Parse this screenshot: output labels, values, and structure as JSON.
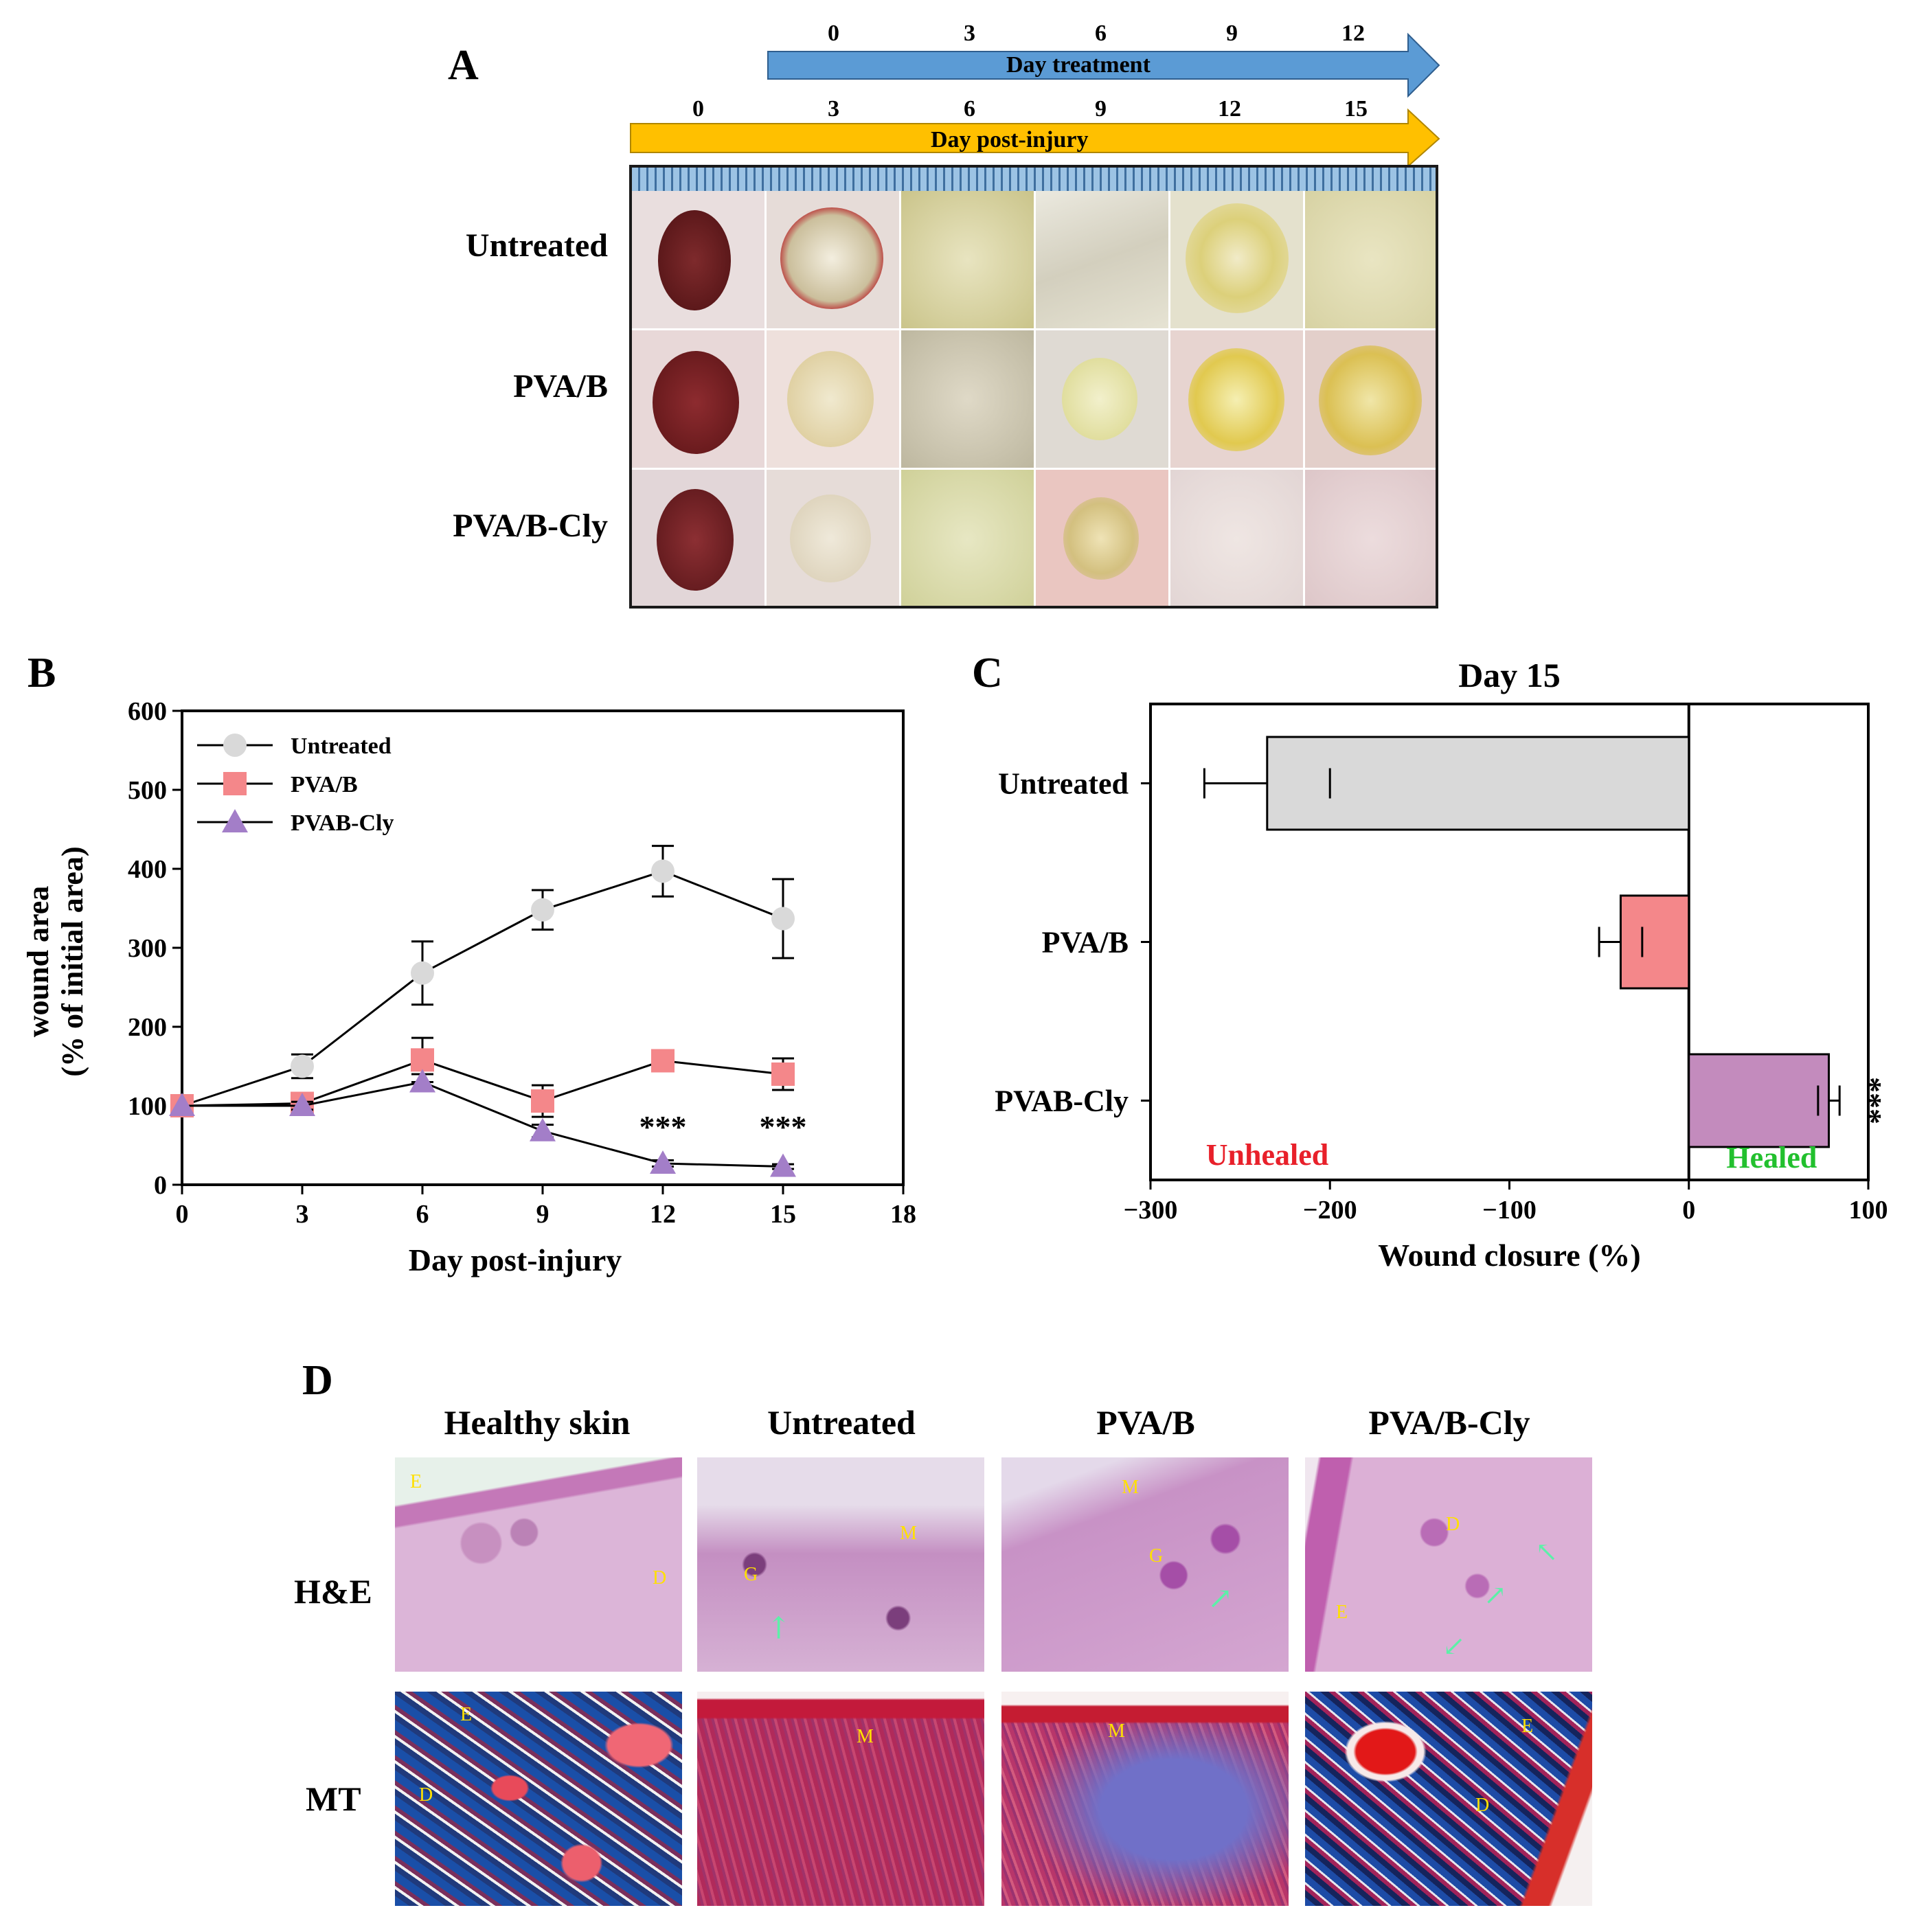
{
  "panelA": {
    "letter": "A",
    "treatment_arrow_label": "Day treatment",
    "treatment_days": [
      "0",
      "3",
      "6",
      "9",
      "12"
    ],
    "injury_arrow_label": "Day post-injury",
    "injury_days": [
      "0",
      "3",
      "6",
      "9",
      "12",
      "15"
    ],
    "rows": [
      "Untreated",
      "PVA/B",
      "PVA/B-Cly"
    ],
    "colors": {
      "treatment_arrow": "#5b9bd5",
      "injury_arrow": "#ffc000"
    }
  },
  "panelB": {
    "letter": "B"
  },
  "panelC": {
    "letter": "C"
  },
  "panelD": {
    "letter": "D",
    "columns": [
      "Healthy skin",
      "Untreated",
      "PVA/B",
      "PVA/B-Cly"
    ],
    "rows": [
      "H&E",
      "MT"
    ],
    "labels": {
      "he_healthy": [
        "E",
        "D"
      ],
      "he_untreated": [
        "G",
        "M"
      ],
      "he_pvab": [
        "M",
        "G"
      ],
      "he_pvabcly": [
        "D",
        "E"
      ],
      "mt_healthy": [
        "E",
        "D"
      ],
      "mt_untreated": [
        "M"
      ],
      "mt_pvab": [
        "M"
      ],
      "mt_pvabcly": [
        "E",
        "D"
      ]
    }
  },
  "chart_data": [
    {
      "type": "line",
      "xlabel": "Day post-injury",
      "ylabel": "wound area (% of initial area)",
      "ylabel_lines": [
        "wound area",
        "(% of initial area)"
      ],
      "xlim": [
        0,
        18
      ],
      "ylim": [
        0,
        600
      ],
      "xticks": [
        0,
        3,
        6,
        9,
        12,
        15,
        18
      ],
      "yticks": [
        0,
        100,
        200,
        300,
        400,
        500,
        600
      ],
      "legend_position": "top-left",
      "series": [
        {
          "name": "Untreated",
          "marker": "circle",
          "color": "#d9d9d9",
          "x": [
            0,
            3,
            6,
            9,
            12,
            15
          ],
          "y": [
            100,
            150,
            268,
            348,
            397,
            337
          ],
          "err": [
            0,
            15,
            40,
            25,
            32,
            50
          ]
        },
        {
          "name": "PVA/B",
          "marker": "square",
          "color": "#f4878a",
          "x": [
            0,
            3,
            6,
            9,
            12,
            15
          ],
          "y": [
            100,
            103,
            158,
            106,
            157,
            140
          ],
          "err": [
            0,
            8,
            28,
            20,
            5,
            20
          ]
        },
        {
          "name": "PVAB-Cly",
          "marker": "triangle",
          "color": "#a37ec8",
          "x": [
            0,
            3,
            6,
            9,
            12,
            15
          ],
          "y": [
            100,
            100,
            130,
            68,
            27,
            23
          ],
          "err": [
            0,
            5,
            10,
            8,
            4,
            3
          ]
        }
      ],
      "annotations": [
        {
          "x": 12,
          "text": "***"
        },
        {
          "x": 15,
          "text": "***"
        }
      ]
    },
    {
      "type": "bar",
      "orientation": "horizontal",
      "title": "Day 15",
      "xlabel": "Wound closure (%)",
      "xlim": [
        -300,
        100
      ],
      "xticks": [
        -300,
        -200,
        -100,
        0,
        100
      ],
      "xtick_labels": [
        "−300",
        "−200",
        "−100",
        "0",
        "100"
      ],
      "categories": [
        "Untreated",
        "PVA/B",
        "PVAB-Cly"
      ],
      "values": [
        -235,
        -38,
        78
      ],
      "err": [
        35,
        12,
        6
      ],
      "colors": [
        "#d9d9d9",
        "#f4878a",
        "#c38bbd"
      ],
      "annotations": [
        {
          "category": "PVAB-Cly",
          "text": "***"
        }
      ],
      "region_labels": [
        {
          "text": "Unhealed",
          "color": "#e8202a"
        },
        {
          "text": "Healed",
          "color": "#22c02e"
        }
      ]
    }
  ]
}
